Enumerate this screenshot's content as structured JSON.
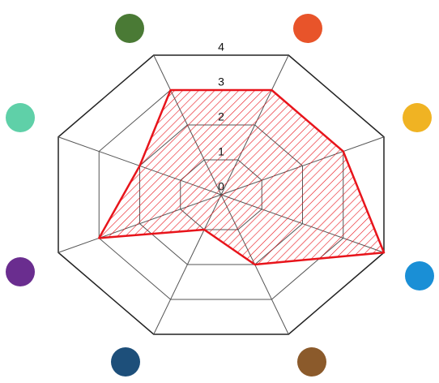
{
  "chart_data": {
    "type": "radar",
    "categories": [
      null,
      null,
      null,
      null,
      null,
      null,
      null,
      null
    ],
    "values": [
      3,
      3,
      4,
      2,
      1,
      3,
      2,
      3
    ],
    "color": "#e8141b",
    "ylim": [
      0,
      4
    ],
    "yticks": [
      0,
      1,
      2,
      3,
      4
    ],
    "grid": true
  }
}
